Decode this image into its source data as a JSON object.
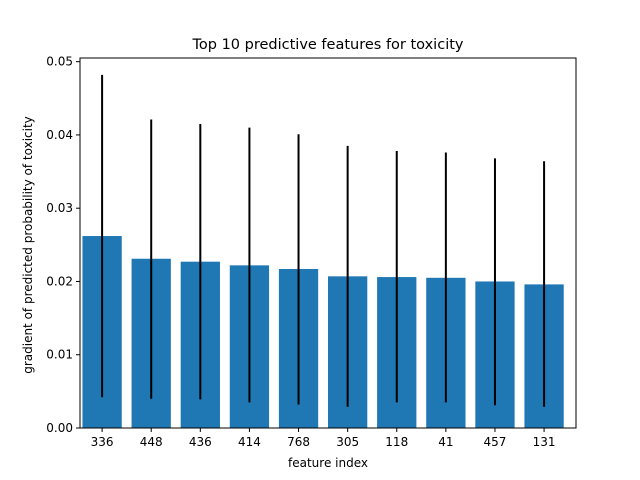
{
  "chart_data": {
    "type": "bar",
    "title": "Top 10 predictive features for toxicity",
    "xlabel": "feature index",
    "ylabel": "gradient of predicted probability of toxicity",
    "categories": [
      "336",
      "448",
      "436",
      "414",
      "768",
      "305",
      "118",
      "41",
      "457",
      "131"
    ],
    "values": [
      0.0262,
      0.0231,
      0.0227,
      0.0222,
      0.0217,
      0.0207,
      0.0206,
      0.0205,
      0.02,
      0.0196
    ],
    "error_low": [
      0.0042,
      0.004,
      0.0039,
      0.0035,
      0.0032,
      0.0029,
      0.0035,
      0.0035,
      0.0031,
      0.0029
    ],
    "error_high": [
      0.0482,
      0.0421,
      0.0415,
      0.041,
      0.0401,
      0.0385,
      0.0378,
      0.0376,
      0.0368,
      0.0364
    ],
    "ylim": [
      0,
      0.0505
    ],
    "yticks": [
      "0.00",
      "0.01",
      "0.02",
      "0.03",
      "0.04",
      "0.05"
    ],
    "ytick_values": [
      0,
      0.01,
      0.02,
      0.03,
      0.04,
      0.05
    ],
    "grid": false,
    "bar_color": "#1f77b4",
    "error_color": "#000000"
  }
}
